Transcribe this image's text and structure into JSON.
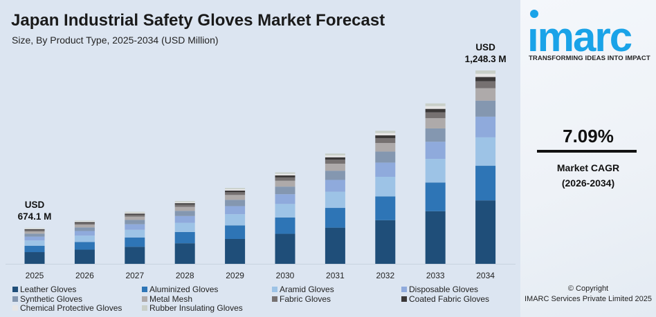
{
  "chart_data": {
    "type": "bar",
    "stacked": true,
    "title": "Japan Industrial Safety Gloves Market Forecast",
    "subtitle": "Size, By Product Type, 2025-2034 (USD Million)",
    "categories": [
      "2025",
      "2026",
      "2027",
      "2028",
      "2029",
      "2030",
      "2031",
      "2032",
      "2033",
      "2034"
    ],
    "totals": [
      674.1,
      722,
      773,
      828,
      887,
      950,
      1017,
      1089,
      1166,
      1248.3
    ],
    "annotations": [
      {
        "category": "2025",
        "line1": "USD",
        "line2": "674.1 M"
      },
      {
        "category": "2034",
        "line1": "USD",
        "line2": "1,248.3 M"
      }
    ],
    "series": [
      {
        "name": "Leather Gloves",
        "color": "#1f4e79",
        "share": 0.328
      },
      {
        "name": "Aluminized Gloves",
        "color": "#2e75b6",
        "share": 0.179
      },
      {
        "name": "Aramid Gloves",
        "color": "#9dc3e6",
        "share": 0.147
      },
      {
        "name": "Disposable Gloves",
        "color": "#8faadc",
        "share": 0.107
      },
      {
        "name": "Synthetic Gloves",
        "color": "#8497b0",
        "share": 0.083
      },
      {
        "name": "Metal Mesh",
        "color": "#aeaaaa",
        "share": 0.064
      },
      {
        "name": "Fabric Gloves",
        "color": "#767171",
        "share": 0.036
      },
      {
        "name": "Coated Fabric Gloves",
        "color": "#3b3838",
        "share": 0.022
      },
      {
        "name": "Chemical Protective Gloves",
        "color": "#e7e6e6",
        "share": 0.017
      },
      {
        "name": "Rubber Insulating Gloves",
        "color": "#c9cfc9",
        "share": 0.017
      }
    ],
    "legend_position": "bottom",
    "grid": false
  },
  "brand": {
    "logo": "imarc",
    "tagline": "TRANSFORMING IDEAS INTO IMPACT",
    "color": "#1aa3e8"
  },
  "cagr": {
    "value": "7.09%",
    "label": "Market CAGR",
    "period": "(2026-2034)"
  },
  "footer": {
    "line1": "© Copyright",
    "line2": "IMARC Services Private Limited 2025"
  }
}
